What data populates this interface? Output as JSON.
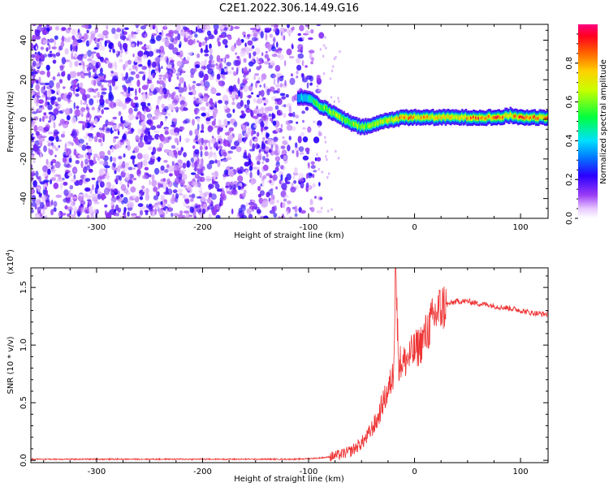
{
  "title": "C2E1.2022.306.14.49.G16",
  "chart_data": [
    {
      "type": "heatmap",
      "xlabel": "Height of straight line (km)",
      "ylabel": "Frequency (Hz)",
      "xlim": [
        -362,
        126
      ],
      "ylim": [
        -50,
        48
      ],
      "xticks": [
        -300,
        -200,
        -100,
        0,
        100
      ],
      "yticks": [
        -40,
        -20,
        0,
        20,
        40
      ],
      "xtick_labels": [
        "-300",
        "-200",
        "-100",
        "0",
        "100"
      ],
      "ytick_labels": [
        "-40",
        "-20",
        "0",
        "20",
        "40"
      ],
      "noise_region_x": [
        -362,
        -93
      ],
      "ridge": {
        "x": [
          -110,
          -100,
          -90,
          -80,
          -70,
          -60,
          -50,
          -40,
          -30,
          -20,
          -10,
          0,
          20,
          40,
          60,
          80,
          90,
          100,
          126
        ],
        "y": [
          11,
          11,
          7,
          4,
          1,
          -2,
          -4,
          -3,
          -1,
          0,
          1,
          1,
          1,
          1,
          1,
          1,
          2,
          1,
          1
        ],
        "amplitude": [
          0.35,
          0.45,
          0.55,
          0.6,
          0.62,
          0.6,
          0.58,
          0.62,
          0.65,
          0.75,
          0.8,
          0.78,
          0.7,
          0.7,
          0.85,
          0.85,
          0.7,
          0.85,
          0.75
        ]
      },
      "colorbar": {
        "label": "Normalized spectral amplitude",
        "range": [
          0,
          1
        ],
        "ticks": [
          0.0,
          0.2,
          0.4,
          0.6,
          0.8
        ],
        "tick_labels": [
          "0.0",
          "0.2",
          "0.4",
          "0.6",
          "0.8"
        ]
      },
      "grid": false
    },
    {
      "type": "line",
      "xlabel": "Height of straight line (km)",
      "ylabel": "SNR (10 * v/v)",
      "y_scale_label": "(x10",
      "y_scale_exp": "4",
      "y_scale_close": ")",
      "xlim": [
        -362,
        126
      ],
      "ylim": [
        -0.02,
        1.67
      ],
      "xticks": [
        -300,
        -200,
        -100,
        0,
        100
      ],
      "yticks": [
        0.0,
        0.5,
        1.0,
        1.5
      ],
      "xtick_labels": [
        "-300",
        "-200",
        "-100",
        "0",
        "100"
      ],
      "ytick_labels": [
        "0.0",
        "0.5",
        "1.0",
        "1.5"
      ],
      "color": "#ee3333",
      "series": [
        {
          "x": [
            -362,
            -300,
            -200,
            -110,
            -90,
            -80,
            -70,
            -60,
            -50,
            -45,
            -40,
            -35,
            -30,
            -25,
            -20,
            -18,
            -15,
            -10,
            -5,
            0,
            5,
            10,
            15,
            20,
            25,
            30,
            40,
            50,
            60,
            70,
            80,
            90,
            100,
            110,
            120,
            126
          ],
          "y": [
            0.01,
            0.01,
            0.01,
            0.01,
            0.02,
            0.03,
            0.05,
            0.08,
            0.15,
            0.2,
            0.28,
            0.35,
            0.5,
            0.6,
            0.75,
            1.67,
            0.85,
            0.85,
            0.9,
            0.95,
            1.0,
            1.08,
            1.18,
            1.27,
            1.32,
            1.35,
            1.38,
            1.38,
            1.36,
            1.35,
            1.33,
            1.32,
            1.3,
            1.28,
            1.27,
            1.27
          ]
        }
      ],
      "grid": false
    }
  ]
}
